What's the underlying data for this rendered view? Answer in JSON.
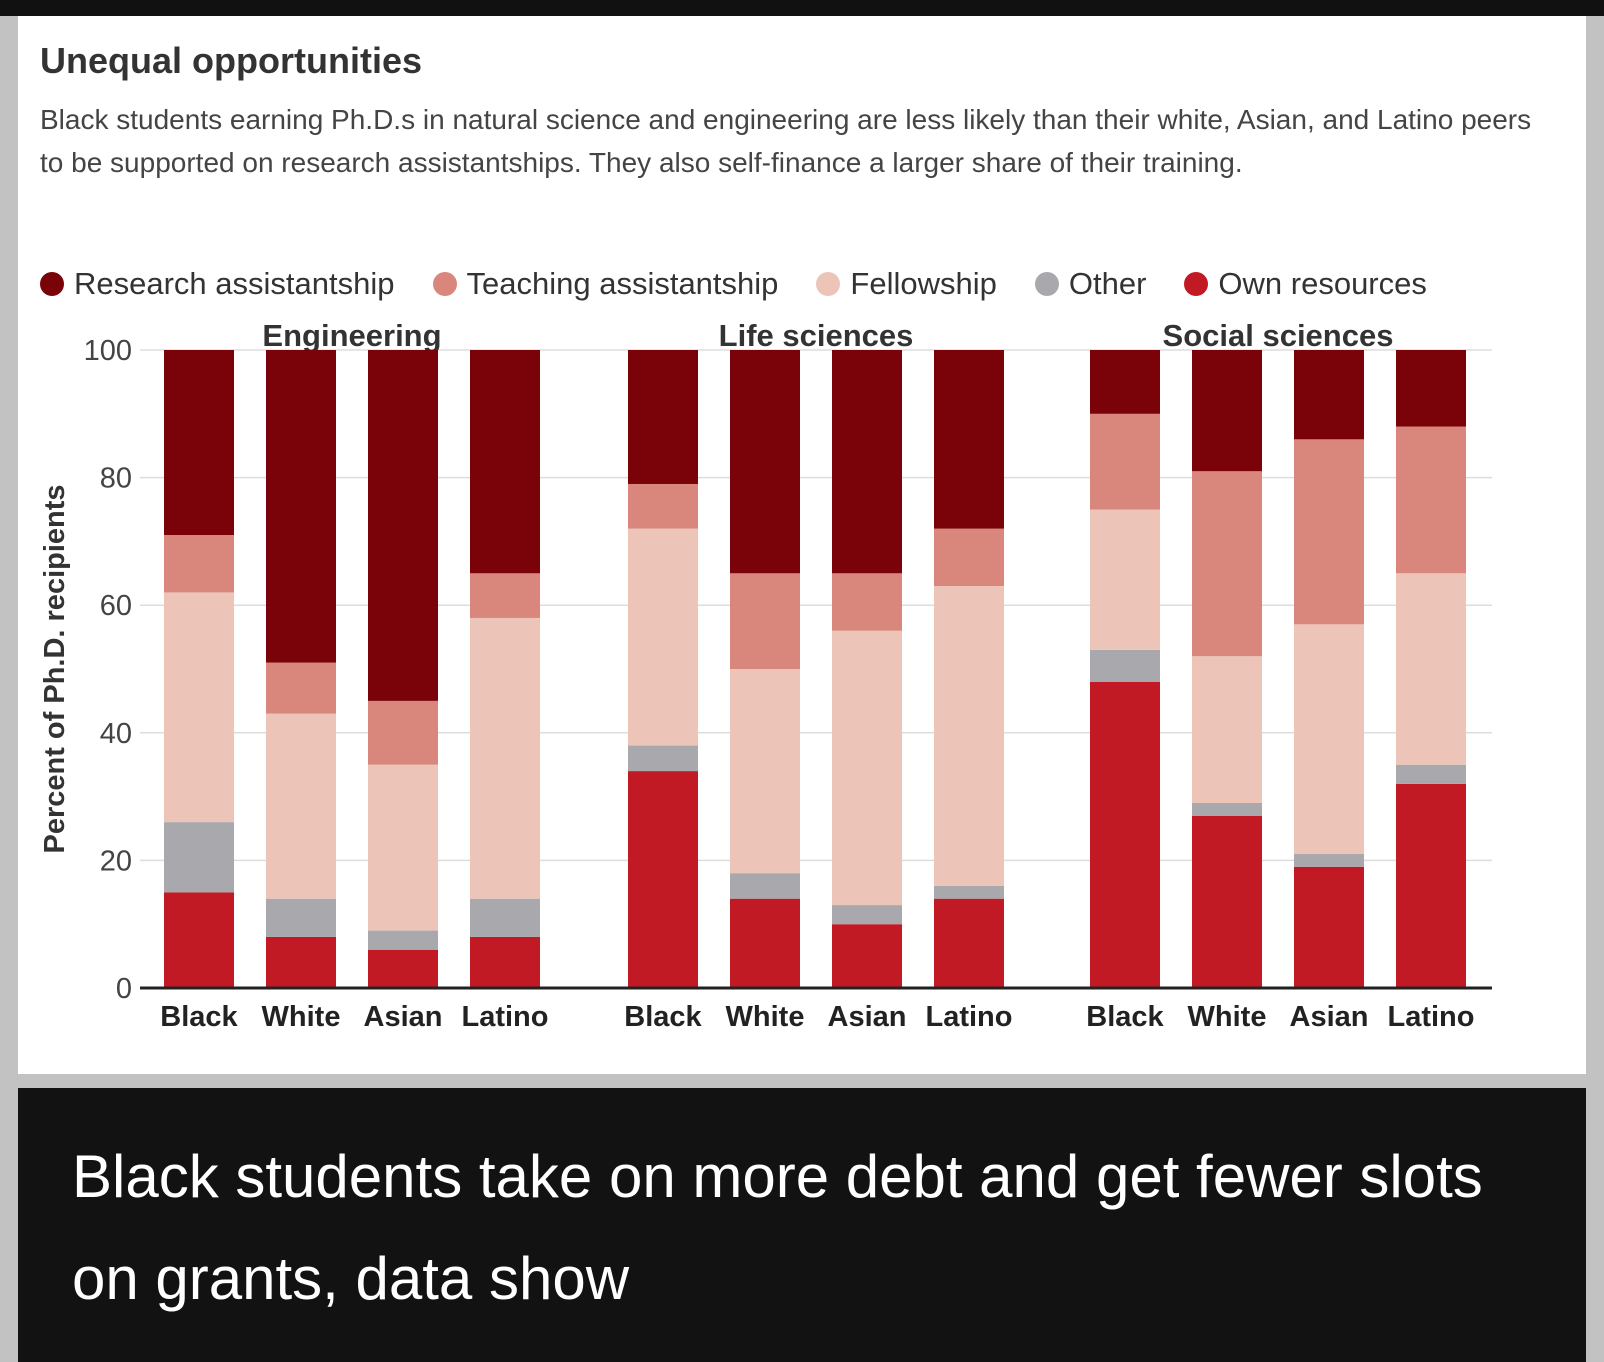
{
  "article": {
    "caption": "Black students take on more debt and get fewer slots on grants, data show"
  },
  "chart_data": {
    "type": "bar",
    "stacked": true,
    "title": "Unequal opportunities",
    "subtitle": "Black students earning Ph.D.s in natural science and engineering are less likely than their white, Asian, and Latino peers to be supported on research assistantships. They also self-finance a larger share of their training.",
    "ylabel": "Percent of Ph.D. recipients",
    "ylim": [
      0,
      100
    ],
    "yticks": [
      "0",
      "20",
      "40",
      "60",
      "80",
      "100"
    ],
    "grid": true,
    "legend_position": "top",
    "categories": [
      "Black",
      "White",
      "Asian",
      "Latino"
    ],
    "series": [
      {
        "name": "Own resources",
        "color": "#c21a24"
      },
      {
        "name": "Other",
        "color": "#a9a9ad"
      },
      {
        "name": "Fellowship",
        "color": "#edc5b8"
      },
      {
        "name": "Teaching assistantship",
        "color": "#d9877c"
      },
      {
        "name": "Research assistantship",
        "color": "#7a0209"
      }
    ],
    "legend_order": [
      "Research assistantship",
      "Teaching assistantship",
      "Fellowship",
      "Other",
      "Own resources"
    ],
    "groups": [
      {
        "name": "Engineering",
        "values": {
          "Own resources": [
            15,
            8,
            6,
            8
          ],
          "Other": [
            11,
            6,
            3,
            6
          ],
          "Fellowship": [
            36,
            29,
            26,
            44
          ],
          "Teaching assistantship": [
            9,
            8,
            10,
            7
          ],
          "Research assistantship": [
            29,
            49,
            55,
            35
          ]
        }
      },
      {
        "name": "Life sciences",
        "values": {
          "Own resources": [
            34,
            14,
            10,
            14
          ],
          "Other": [
            4,
            4,
            3,
            2
          ],
          "Fellowship": [
            34,
            32,
            43,
            47
          ],
          "Teaching assistantship": [
            7,
            15,
            9,
            9
          ],
          "Research assistantship": [
            21,
            35,
            35,
            28
          ]
        }
      },
      {
        "name": "Social sciences",
        "values": {
          "Own resources": [
            48,
            27,
            19,
            32
          ],
          "Other": [
            5,
            2,
            2,
            3
          ],
          "Fellowship": [
            22,
            23,
            36,
            30
          ],
          "Teaching assistantship": [
            15,
            29,
            29,
            23
          ],
          "Research assistantship": [
            10,
            19,
            14,
            12
          ]
        }
      }
    ]
  }
}
